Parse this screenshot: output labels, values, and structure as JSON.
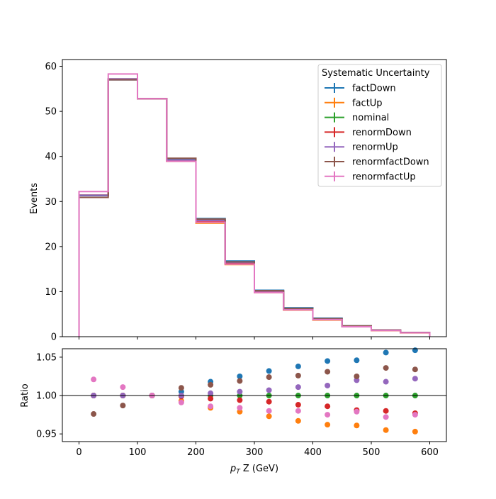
{
  "chart_data": {
    "type": "line",
    "x_tick_labels": [
      "0",
      "100",
      "200",
      "300",
      "400",
      "500",
      "600"
    ],
    "xlabel_main": "p",
    "xlabel_sub": "T",
    "xlabel_rest": " Z (GeV)",
    "bin_edges": [
      0,
      50,
      100,
      150,
      200,
      250,
      300,
      350,
      400,
      450,
      500,
      550,
      600
    ],
    "top_panel": {
      "type": "step",
      "ylabel": "Events",
      "ylim": [
        0,
        61.5
      ],
      "y_ticks": [
        0,
        10,
        20,
        30,
        40,
        50,
        60
      ],
      "y_tick_labels": [
        "0",
        "10",
        "20",
        "30",
        "40",
        "50",
        "60"
      ]
    },
    "bottom_panel": {
      "type": "scatter",
      "ylabel": "Ratio",
      "ylim": [
        0.94,
        1.061
      ],
      "y_ticks": [
        0.95,
        1.0,
        1.05
      ],
      "y_tick_labels": [
        "0.95",
        "1.00",
        "1.05"
      ],
      "reference_line": 1.0,
      "x_centers": [
        25,
        75,
        125,
        175,
        225,
        275,
        325,
        375,
        425,
        475,
        525,
        575
      ]
    },
    "legend": {
      "title": "Systematic Uncertainty",
      "placement": "upper right"
    },
    "series": [
      {
        "name": "factDown",
        "color": "#1f77b4",
        "values": [
          31.3,
          57.0,
          52.8,
          39.4,
          26.2,
          16.8,
          10.3,
          6.4,
          4.1,
          2.4,
          1.5,
          0.95
        ],
        "ratio": [
          1.0,
          1.0,
          1.0,
          1.005,
          1.018,
          1.025,
          1.032,
          1.038,
          1.045,
          1.046,
          1.056,
          1.059
        ]
      },
      {
        "name": "factUp",
        "color": "#ff7f0e",
        "values": [
          31.4,
          57.1,
          52.8,
          38.9,
          25.2,
          16.0,
          9.8,
          5.9,
          3.7,
          2.2,
          1.35,
          0.85
        ],
        "ratio": [
          1.0,
          1.0,
          1.0,
          0.993,
          0.984,
          0.979,
          0.973,
          0.967,
          0.962,
          0.961,
          0.955,
          0.953
        ]
      },
      {
        "name": "nominal",
        "color": "#2ca02c",
        "values": [
          31.4,
          57.2,
          52.8,
          39.2,
          25.7,
          16.4,
          10.0,
          6.1,
          3.9,
          2.3,
          1.42,
          0.9
        ],
        "ratio": [
          1.0,
          1.0,
          1.0,
          1.0,
          1.0,
          1.0,
          1.0,
          1.0,
          1.0,
          1.0,
          1.0,
          1.0
        ]
      },
      {
        "name": "renormDown",
        "color": "#d62728",
        "values": [
          31.4,
          57.2,
          52.8,
          39.0,
          25.6,
          16.3,
          9.9,
          6.0,
          3.8,
          2.25,
          1.39,
          0.88
        ],
        "ratio": [
          1.0,
          1.0,
          1.0,
          0.999,
          0.996,
          0.994,
          0.992,
          0.988,
          0.986,
          0.981,
          0.98,
          0.977
        ]
      },
      {
        "name": "renormUp",
        "color": "#9467bd",
        "values": [
          31.4,
          57.2,
          52.8,
          39.2,
          25.8,
          16.5,
          10.1,
          6.2,
          3.95,
          2.35,
          1.45,
          0.92
        ],
        "ratio": [
          1.0,
          1.0,
          1.0,
          1.0,
          1.003,
          1.005,
          1.007,
          1.011,
          1.013,
          1.02,
          1.018,
          1.022
        ]
      },
      {
        "name": "renormfactDown",
        "color": "#8c564b",
        "values": [
          30.9,
          57.0,
          52.8,
          39.6,
          26.1,
          16.6,
          10.2,
          6.25,
          4.0,
          2.4,
          1.47,
          0.93
        ],
        "ratio": [
          0.976,
          0.987,
          1.0,
          1.01,
          1.014,
          1.019,
          1.024,
          1.026,
          1.031,
          1.025,
          1.036,
          1.034
        ]
      },
      {
        "name": "renormfactUp",
        "color": "#e377c2",
        "values": [
          32.2,
          58.3,
          52.8,
          38.9,
          25.4,
          16.1,
          9.8,
          5.95,
          3.8,
          2.2,
          1.38,
          0.87
        ],
        "ratio": [
          1.021,
          1.011,
          1.0,
          0.991,
          0.986,
          0.984,
          0.98,
          0.98,
          0.975,
          0.979,
          0.972,
          0.975
        ]
      }
    ]
  }
}
